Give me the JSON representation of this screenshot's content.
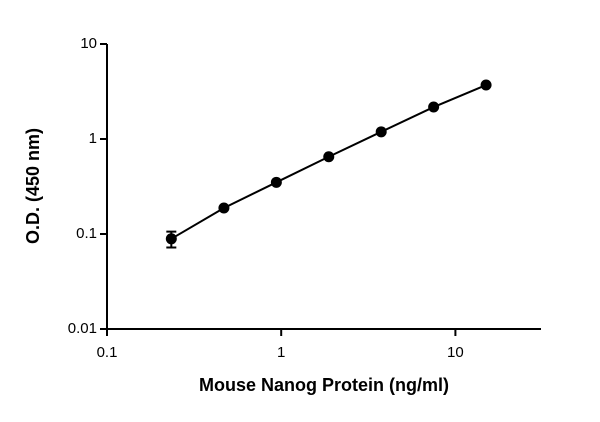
{
  "chart_data": {
    "type": "scatter",
    "x_label": "Mouse Nanog Protein (ng/ml)",
    "y_label": "O.D. (450 nm)",
    "x_log": true,
    "y_log": true,
    "x": [
      0.234,
      0.469,
      0.938,
      1.875,
      3.75,
      7.5,
      15
    ],
    "series": [
      {
        "color": "#000000",
        "values": [
          0.089,
          0.188,
          0.35,
          0.65,
          1.19,
          2.17,
          3.7
        ],
        "errors": [
          0.017,
          null,
          null,
          null,
          null,
          null,
          null
        ]
      }
    ],
    "xlim": [
      0.1,
      31
    ],
    "ylim": [
      0.01,
      10
    ],
    "xticks": [
      0.1,
      1,
      10
    ],
    "yticks": [
      0.01,
      0.1,
      1,
      10
    ]
  }
}
